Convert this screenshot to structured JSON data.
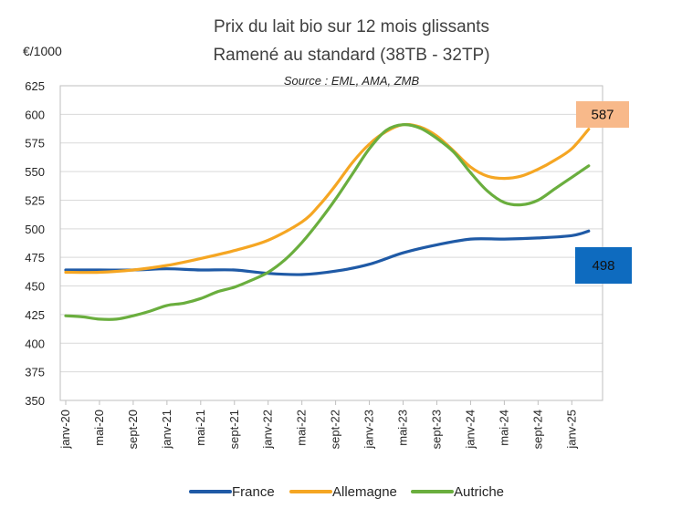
{
  "chart_data": {
    "type": "line",
    "title": "Prix du lait bio sur 12 mois glissants",
    "subtitle": "Ramené au standard (38TB - 32TP)",
    "source": "Source : EML, AMA, ZMB",
    "ylabel": "€/1000",
    "xlabel": "",
    "ylim": [
      350,
      625
    ],
    "yticks": [
      350,
      375,
      400,
      425,
      450,
      475,
      500,
      525,
      550,
      575,
      600,
      625
    ],
    "xlim": [
      0,
      63
    ],
    "xticks": [
      {
        "x": 0,
        "label": "janv-20"
      },
      {
        "x": 4,
        "label": "mai-20"
      },
      {
        "x": 8,
        "label": "sept-20"
      },
      {
        "x": 12,
        "label": "janv-21"
      },
      {
        "x": 16,
        "label": "mai-21"
      },
      {
        "x": 20,
        "label": "sept-21"
      },
      {
        "x": 24,
        "label": "janv-22"
      },
      {
        "x": 28,
        "label": "mai-22"
      },
      {
        "x": 32,
        "label": "sept-22"
      },
      {
        "x": 36,
        "label": "janv-23"
      },
      {
        "x": 40,
        "label": "mai-23"
      },
      {
        "x": 44,
        "label": "sept-23"
      },
      {
        "x": 48,
        "label": "janv-24"
      },
      {
        "x": 52,
        "label": "mai-24"
      },
      {
        "x": 56,
        "label": "sept-24"
      },
      {
        "x": 60,
        "label": "janv-25"
      }
    ],
    "grid": "horizontal",
    "legend_position": "bottom",
    "series": [
      {
        "name": "France",
        "color": "#1F5AA6",
        "points": [
          [
            0,
            464
          ],
          [
            4,
            464
          ],
          [
            8,
            464
          ],
          [
            12,
            465
          ],
          [
            16,
            464
          ],
          [
            20,
            464
          ],
          [
            24,
            461
          ],
          [
            28,
            460
          ],
          [
            32,
            463
          ],
          [
            36,
            469
          ],
          [
            40,
            479
          ],
          [
            44,
            486
          ],
          [
            48,
            491
          ],
          [
            52,
            491
          ],
          [
            56,
            492
          ],
          [
            60,
            494
          ],
          [
            62,
            498
          ]
        ],
        "end_label": "498",
        "callout_bg": "#0E6BBF",
        "callout_text_color": "#111111"
      },
      {
        "name": "Allemagne",
        "color": "#F5A623",
        "points": [
          [
            0,
            462
          ],
          [
            4,
            462
          ],
          [
            8,
            464
          ],
          [
            12,
            468
          ],
          [
            16,
            474
          ],
          [
            20,
            481
          ],
          [
            24,
            490
          ],
          [
            28,
            506
          ],
          [
            30,
            520
          ],
          [
            32,
            538
          ],
          [
            34,
            558
          ],
          [
            36,
            574
          ],
          [
            38,
            585
          ],
          [
            40,
            591
          ],
          [
            42,
            589
          ],
          [
            44,
            581
          ],
          [
            46,
            568
          ],
          [
            48,
            554
          ],
          [
            50,
            546
          ],
          [
            52,
            544
          ],
          [
            54,
            546
          ],
          [
            56,
            552
          ],
          [
            58,
            560
          ],
          [
            60,
            570
          ],
          [
            62,
            587
          ]
        ],
        "end_label": "587",
        "callout_bg": "#F8B98A",
        "callout_text_color": "#111111"
      },
      {
        "name": "Autriche",
        "color": "#6AAE3E",
        "points": [
          [
            0,
            424
          ],
          [
            2,
            423
          ],
          [
            4,
            421
          ],
          [
            6,
            421
          ],
          [
            8,
            424
          ],
          [
            10,
            428
          ],
          [
            12,
            433
          ],
          [
            14,
            435
          ],
          [
            16,
            439
          ],
          [
            18,
            445
          ],
          [
            20,
            449
          ],
          [
            22,
            455
          ],
          [
            24,
            462
          ],
          [
            26,
            473
          ],
          [
            28,
            488
          ],
          [
            30,
            506
          ],
          [
            32,
            526
          ],
          [
            34,
            548
          ],
          [
            36,
            570
          ],
          [
            38,
            586
          ],
          [
            40,
            591
          ],
          [
            42,
            588
          ],
          [
            44,
            579
          ],
          [
            46,
            567
          ],
          [
            48,
            549
          ],
          [
            50,
            533
          ],
          [
            52,
            523
          ],
          [
            54,
            521
          ],
          [
            56,
            525
          ],
          [
            58,
            535
          ],
          [
            60,
            545
          ],
          [
            62,
            555
          ]
        ]
      }
    ]
  }
}
